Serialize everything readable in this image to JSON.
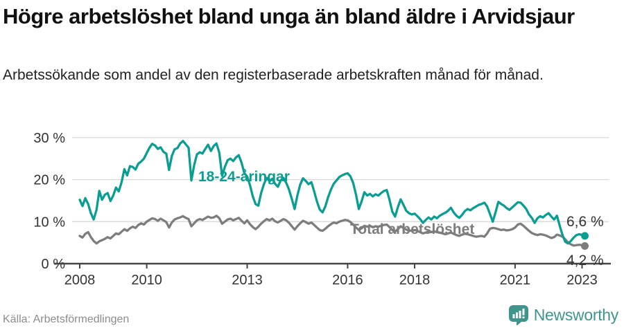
{
  "header": {
    "title": "Högre arbetslöshet bland unga än bland äldre i Arvidsjaur",
    "subtitle": "Arbetssökande som andel av den registerbaserade arbetskraften månad för månad."
  },
  "footer": {
    "source": "Källa: Arbetsförmedlingen",
    "brand_name": "Newsworthy",
    "brand_icon": "newsworthy-pin-barchart-icon"
  },
  "colors": {
    "youth_line": "#0b9d91",
    "total_line": "#7d7d7d",
    "grid": "#d9d9d9",
    "axis": "#444444",
    "tick_text": "#333333",
    "brand_teal": "#41948c",
    "title_text": "#111111"
  },
  "chart_data": {
    "type": "line",
    "title": "Högre arbetslöshet bland unga än bland äldre i Arvidsjaur",
    "subtitle": "Arbetssökande som andel av den registerbaserade arbetskraften månad för månad.",
    "unit": "%",
    "x_start_year": 2008,
    "points_per_year": 12,
    "x_range": [
      "2008-01",
      "2023-02"
    ],
    "ylim": [
      0,
      32
    ],
    "grid": "horizontal",
    "legend_position": "inline-annotations",
    "x_ticks": [
      "2008",
      "2010",
      "2013",
      "2016",
      "2018",
      "2021",
      "2023"
    ],
    "x_tick_years": [
      2008,
      2010,
      2013,
      2016,
      2018,
      2021,
      2023
    ],
    "y_ticks": [
      0,
      10,
      20,
      30
    ],
    "y_tick_labels": [
      "0 %",
      "10 %",
      "20 %",
      "30 %"
    ],
    "series": [
      {
        "name": "18-24-åringar",
        "color": "#0b9d91",
        "end_label": "6,6 %",
        "end_value": 6.6,
        "values": [
          15.2,
          13.7,
          15.6,
          14.2,
          12.0,
          10.5,
          12.8,
          17.3,
          15.2,
          16.4,
          16.8,
          14.9,
          16.2,
          18.1,
          17.2,
          19.4,
          22.5,
          21.0,
          23.2,
          23.0,
          22.4,
          23.8,
          24.3,
          25.0,
          26.3,
          27.6,
          28.5,
          28.1,
          27.3,
          27.7,
          26.6,
          26.2,
          22.3,
          25.6,
          27.2,
          27.5,
          28.6,
          29.2,
          28.4,
          27.6,
          19.8,
          23.4,
          26.0,
          26.5,
          26.2,
          27.3,
          28.3,
          26.8,
          28.0,
          28.6,
          26.4,
          20.9,
          23.0,
          24.6,
          25.0,
          24.4,
          25.3,
          25.8,
          24.0,
          21.5,
          20.7,
          18.7,
          16.0,
          14.2,
          13.8,
          16.8,
          18.9,
          20.4,
          19.6,
          20.2,
          19.0,
          18.3,
          19.8,
          20.4,
          19.2,
          17.6,
          15.4,
          13.0,
          16.2,
          18.8,
          20.3,
          19.7,
          18.9,
          19.4,
          17.2,
          14.8,
          12.9,
          12.2,
          13.6,
          15.8,
          17.6,
          19.0,
          19.8,
          20.6,
          21.0,
          21.3,
          21.5,
          20.8,
          19.2,
          16.4,
          13.0,
          14.8,
          17.0,
          16.2,
          16.6,
          16.0,
          16.5,
          16.2,
          16.8,
          17.3,
          17.5,
          15.2,
          12.4,
          11.2,
          13.4,
          15.3,
          14.0,
          12.6,
          12.0,
          11.7,
          11.9,
          11.3,
          10.6,
          9.7,
          10.4,
          11.0,
          10.5,
          11.2,
          10.8,
          11.4,
          11.8,
          12.1,
          12.6,
          13.3,
          12.2,
          11.4,
          10.9,
          11.6,
          12.5,
          13.0,
          12.7,
          13.2,
          13.6,
          14.0,
          14.2,
          14.5,
          13.6,
          11.8,
          10.0,
          12.2,
          14.7,
          14.2,
          13.8,
          13.2,
          12.8,
          13.4,
          14.0,
          14.6,
          14.5,
          13.8,
          13.0,
          11.7,
          10.9,
          9.7,
          10.8,
          11.3,
          11.0,
          11.6,
          12.0,
          11.2,
          10.5,
          11.4,
          9.0,
          6.8,
          5.2,
          4.8,
          5.4,
          6.2,
          6.8,
          7.0,
          6.8,
          6.6
        ]
      },
      {
        "name": "Total arbetslöshet",
        "color": "#7d7d7d",
        "end_label": "4,2 %",
        "end_value": 4.2,
        "values": [
          6.6,
          6.2,
          7.1,
          7.5,
          6.3,
          5.4,
          4.8,
          5.3,
          5.6,
          5.9,
          6.3,
          6.0,
          6.6,
          7.2,
          7.0,
          7.6,
          8.2,
          7.8,
          8.4,
          8.8,
          8.5,
          9.2,
          9.6,
          9.3,
          10.0,
          10.4,
          10.8,
          10.6,
          10.2,
          10.7,
          10.3,
          9.9,
          8.6,
          9.8,
          10.5,
          10.8,
          11.0,
          11.3,
          10.9,
          10.6,
          8.9,
          9.6,
          10.3,
          10.6,
          10.4,
          10.8,
          11.2,
          10.9,
          11.0,
          11.4,
          10.8,
          9.5,
          10.0,
          10.5,
          10.7,
          10.3,
          10.6,
          10.9,
          10.2,
          9.6,
          10.3,
          9.4,
          8.7,
          8.2,
          8.8,
          9.5,
          10.1,
          10.6,
          10.3,
          10.7,
          10.1,
          9.8,
          10.2,
          10.6,
          10.3,
          9.7,
          8.9,
          8.1,
          8.9,
          9.6,
          10.2,
          9.9,
          9.5,
          9.8,
          9.2,
          8.6,
          8.0,
          7.8,
          8.3,
          8.9,
          9.4,
          9.8,
          9.6,
          10.0,
          10.2,
          10.4,
          10.3,
          9.9,
          9.3,
          8.6,
          8.0,
          8.4,
          9.0,
          8.8,
          9.0,
          8.7,
          8.9,
          8.8,
          9.0,
          9.2,
          9.3,
          8.7,
          8.0,
          7.6,
          8.2,
          8.9,
          8.5,
          8.1,
          7.9,
          7.8,
          8.0,
          7.8,
          7.5,
          7.2,
          7.4,
          7.7,
          7.5,
          7.7,
          7.5,
          7.4,
          7.2,
          7.0,
          7.2,
          7.4,
          7.1,
          6.8,
          6.6,
          6.9,
          7.1,
          7.0,
          6.8,
          6.6,
          6.4,
          6.5,
          6.6,
          6.4,
          7.2,
          8.3,
          8.5,
          8.4,
          8.2,
          8.0,
          8.1,
          7.9,
          8.0,
          8.2,
          8.6,
          9.3,
          9.5,
          9.0,
          8.4,
          7.8,
          7.3,
          7.0,
          6.8,
          7.0,
          6.9,
          6.7,
          6.4,
          6.1,
          6.3,
          6.9,
          6.7,
          6.4,
          5.8,
          5.0,
          4.6,
          4.3,
          4.4,
          4.5,
          4.4,
          4.2
        ]
      }
    ]
  }
}
